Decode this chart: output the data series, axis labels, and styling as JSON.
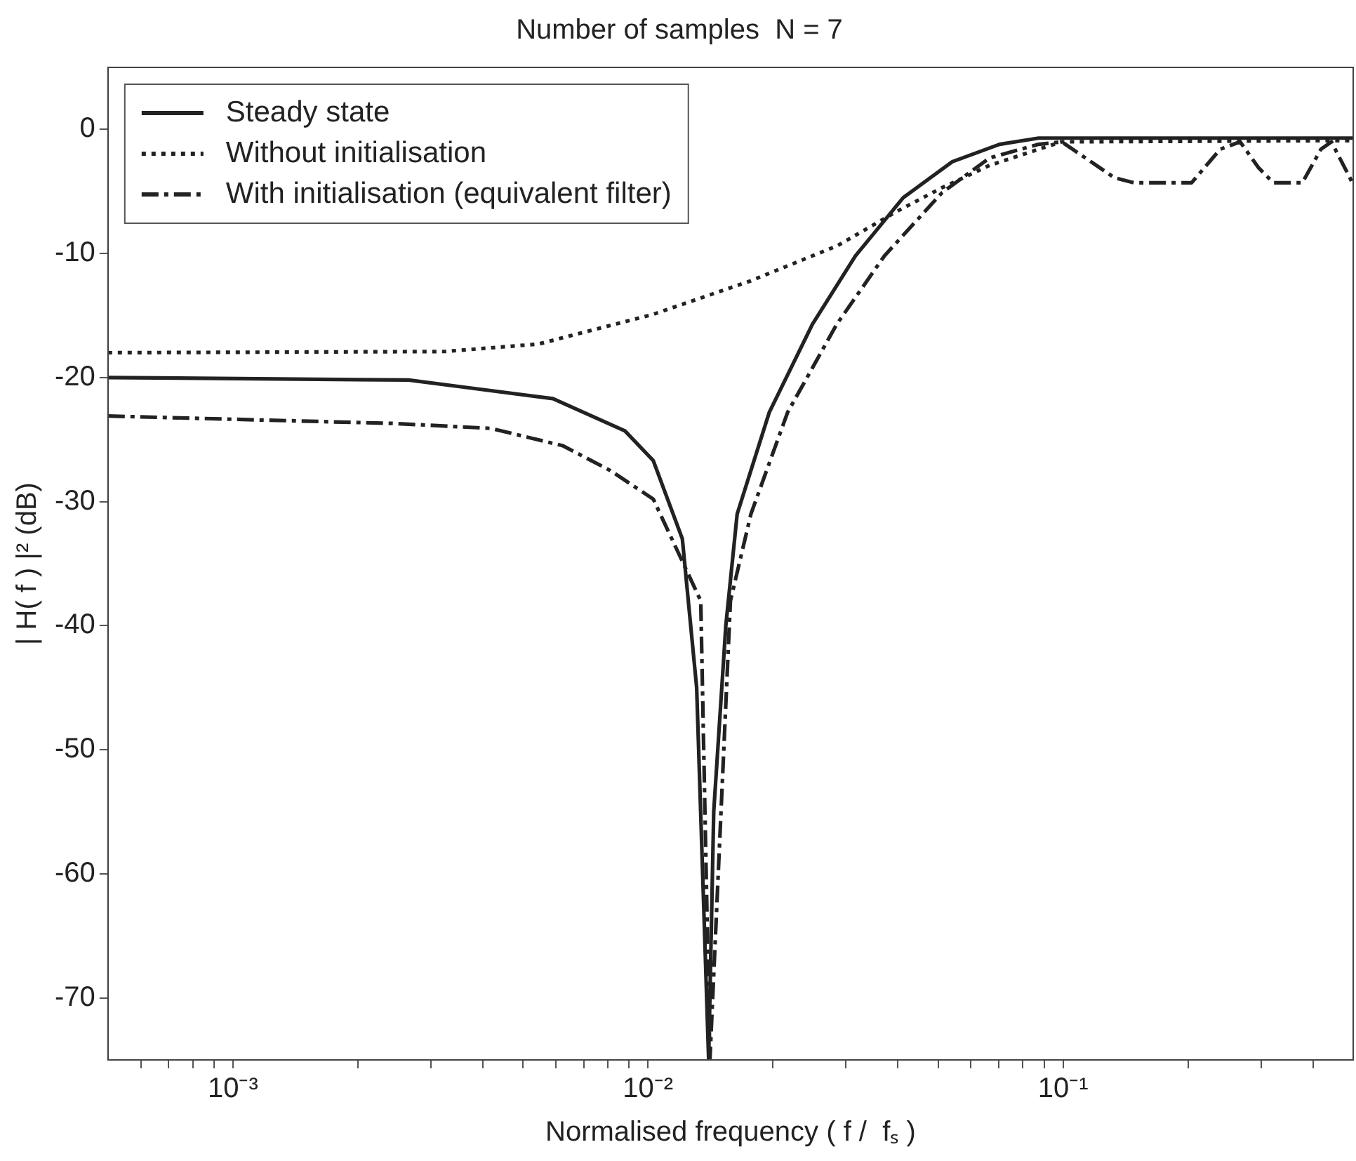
{
  "chart_data": {
    "type": "line",
    "title": "Number of samples  N = 7",
    "xlabel": "Normalised frequency ( f /  fₛ )",
    "ylabel": "| H( f ) |² (dB)",
    "log": "x",
    "xlim": [
      0.0005,
      0.5
    ],
    "ylim": [
      -75,
      5
    ],
    "xticks": [
      {
        "value": 0.0006,
        "label": null
      },
      {
        "value": 0.0007,
        "label": null
      },
      {
        "value": 0.0008,
        "label": null
      },
      {
        "value": 0.0009,
        "label": null
      },
      {
        "value": 0.001,
        "label": "10⁻³"
      },
      {
        "value": 0.002,
        "label": null
      },
      {
        "value": 0.003,
        "label": null
      },
      {
        "value": 0.004,
        "label": null
      },
      {
        "value": 0.005,
        "label": null
      },
      {
        "value": 0.006,
        "label": null
      },
      {
        "value": 0.007,
        "label": null
      },
      {
        "value": 0.008,
        "label": null
      },
      {
        "value": 0.009,
        "label": null
      },
      {
        "value": 0.01,
        "label": "10⁻²"
      },
      {
        "value": 0.02,
        "label": null
      },
      {
        "value": 0.03,
        "label": null
      },
      {
        "value": 0.04,
        "label": null
      },
      {
        "value": 0.05,
        "label": null
      },
      {
        "value": 0.06,
        "label": null
      },
      {
        "value": 0.07,
        "label": null
      },
      {
        "value": 0.08,
        "label": null
      },
      {
        "value": 0.09,
        "label": null
      },
      {
        "value": 0.1,
        "label": "10⁻¹"
      },
      {
        "value": 0.2,
        "label": null
      },
      {
        "value": 0.3,
        "label": null
      },
      {
        "value": 0.4,
        "label": null
      }
    ],
    "yticks": [
      -70,
      -60,
      -50,
      -40,
      -30,
      -20,
      -10,
      0
    ],
    "grid": false,
    "legend": "top left",
    "marker": "none",
    "series": [
      {
        "name": "Steady state",
        "color": "#222222",
        "line_style": "solid",
        "x": [
          0.0005,
          0.00265,
          0.00365,
          0.0059,
          0.0088,
          0.0103,
          0.0121,
          0.0131,
          0.014,
          0.0144,
          0.0154,
          0.0164,
          0.0196,
          0.0249,
          0.0316,
          0.0412,
          0.0541,
          0.0703,
          0.0873,
          0.5
        ],
        "values": [
          -20,
          -20.2,
          -20.8,
          -21.7,
          -24.3,
          -26.7,
          -33,
          -45,
          -75,
          -55,
          -40,
          -31,
          -22.8,
          -15.7,
          -10.2,
          -5.5,
          -2.6,
          -1.2,
          -0.7,
          -0.7
        ]
      },
      {
        "name": "Without initialisation",
        "color": "#222222",
        "line_style": "dotted",
        "x": [
          0.0005,
          0.00324,
          0.00545,
          0.0103,
          0.0177,
          0.0285,
          0.0393,
          0.0511,
          0.0665,
          0.0873,
          0.0993,
          0.5
        ],
        "values": [
          -18,
          -17.9,
          -17.3,
          -14.9,
          -12.2,
          -9.4,
          -6.7,
          -4.7,
          -2.9,
          -1.6,
          -1,
          -0.9
        ]
      },
      {
        "name": "With initialisation (equivalent filter)",
        "color": "#222222",
        "line_style": "dashdot",
        "x": [
          0.0005,
          0.00245,
          0.00419,
          0.00624,
          0.00812,
          0.0103,
          0.0134,
          0.0141,
          0.0158,
          0.0177,
          0.0217,
          0.0285,
          0.0371,
          0.0511,
          0.0665,
          0.0873,
          0.0993,
          0.133,
          0.148,
          0.204,
          0.239,
          0.267,
          0.296,
          0.321,
          0.377,
          0.418,
          0.443,
          0.491,
          0.5
        ],
        "values": [
          -23.1,
          -23.7,
          -24.1,
          -25.5,
          -27.5,
          -29.8,
          -38,
          -75,
          -38,
          -31,
          -22.8,
          -15.7,
          -10.2,
          -5.1,
          -2.3,
          -1.2,
          -1,
          -3.9,
          -4.3,
          -4.3,
          -1.6,
          -1,
          -3.1,
          -4.3,
          -4.3,
          -1.6,
          -1,
          -3.9,
          -4.5
        ]
      }
    ]
  }
}
